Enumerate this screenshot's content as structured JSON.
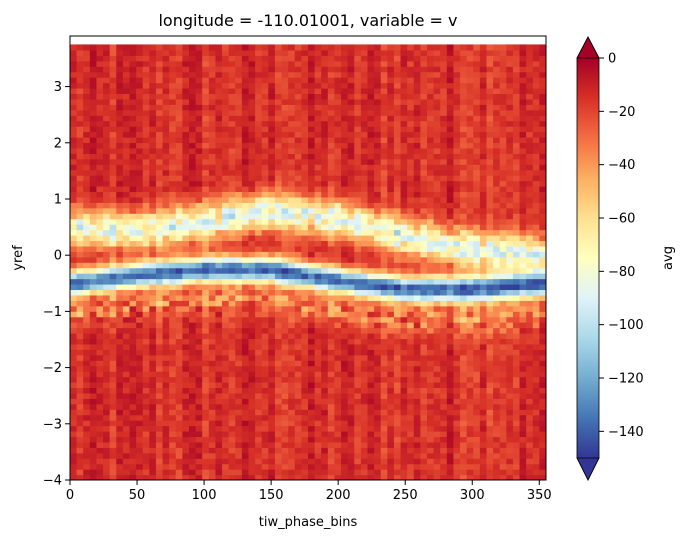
{
  "chart_data": {
    "type": "heatmap",
    "title": "longitude = -110.01001, variable = v",
    "xlabel": "tiw_phase_bins",
    "ylabel": "yref",
    "xlim": [
      0,
      355
    ],
    "ylim": [
      -4,
      3.9
    ],
    "x_ticks": [
      0,
      50,
      100,
      150,
      200,
      250,
      300,
      350
    ],
    "x_tick_labels": [
      "0",
      "50",
      "100",
      "150",
      "200",
      "250",
      "300",
      "350"
    ],
    "y_ticks": [
      -4,
      -3,
      -2,
      -1,
      0,
      1,
      2,
      3
    ],
    "y_tick_labels": [
      "−4",
      "−3",
      "−2",
      "−1",
      "0",
      "1",
      "2",
      "3"
    ],
    "colorbar": {
      "label": "avg",
      "range": [
        -150,
        0
      ],
      "extend": "both",
      "colormap": "RdYlBu_r",
      "ticks": [
        0,
        -20,
        -40,
        -60,
        -80,
        -100,
        -120,
        -140
      ],
      "tick_labels": [
        "0",
        "−20",
        "−40",
        "−60",
        "−80",
        "−100",
        "−120",
        "−140"
      ]
    },
    "data_top_y": 3.75,
    "background_value": -15,
    "core_band": {
      "description_values": "strongly negative core (about -140) following a wavy path",
      "center_y": [
        [
          0,
          -0.5
        ],
        [
          50,
          -0.35
        ],
        [
          100,
          -0.25
        ],
        [
          150,
          -0.25
        ],
        [
          200,
          -0.45
        ],
        [
          250,
          -0.6
        ],
        [
          300,
          -0.6
        ],
        [
          355,
          -0.5
        ]
      ],
      "core_value": -140
    },
    "upper_lobe": {
      "center_y": [
        [
          0,
          0.5
        ],
        [
          50,
          0.45
        ],
        [
          100,
          0.6
        ],
        [
          150,
          0.8
        ],
        [
          200,
          0.65
        ],
        [
          250,
          0.35
        ],
        [
          300,
          0.1
        ],
        [
          355,
          0.0
        ]
      ],
      "value": -95
    }
  }
}
